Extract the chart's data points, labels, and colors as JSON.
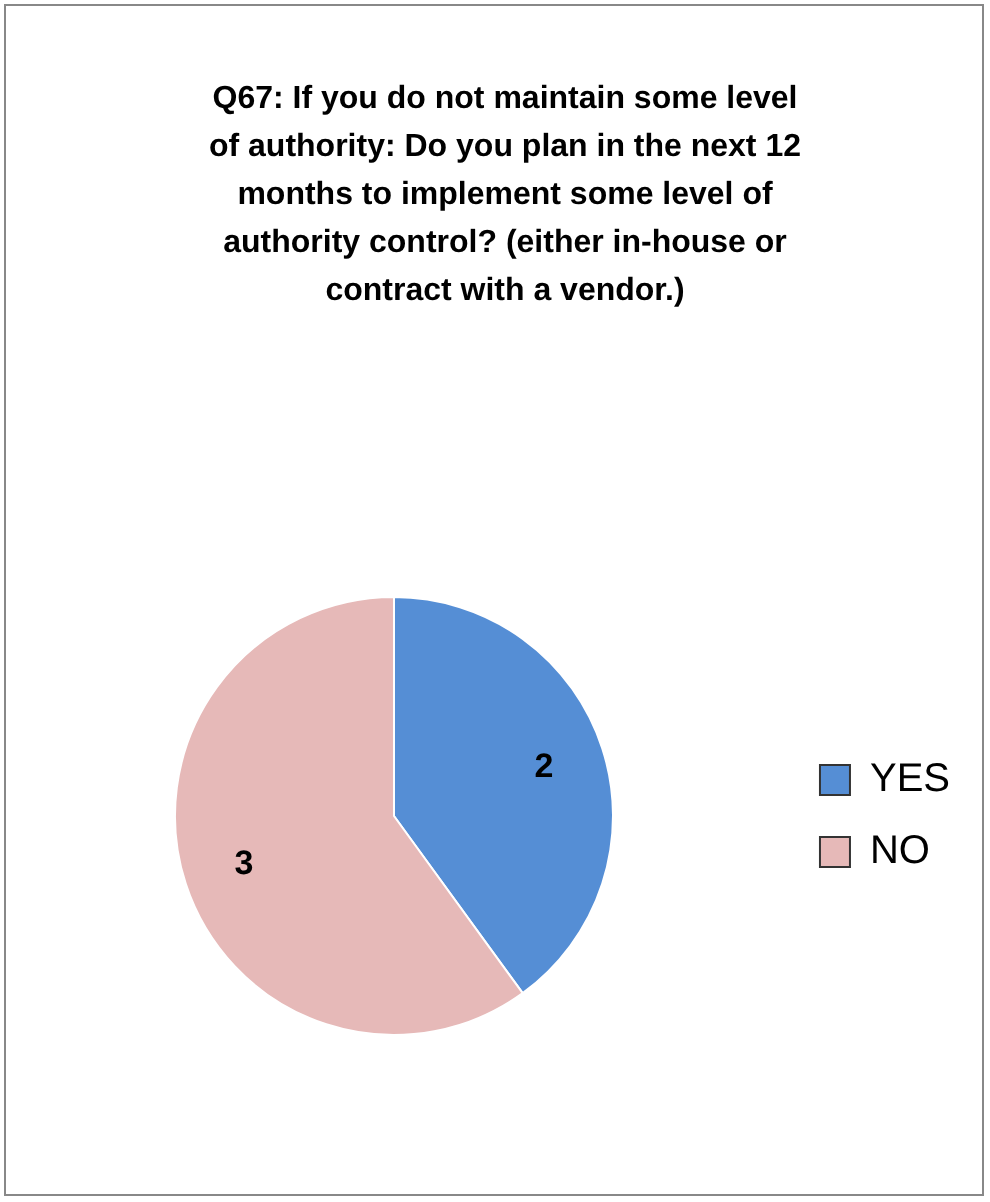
{
  "chart_data": {
    "type": "pie",
    "title": "Q67: If you do not maintain some level of authority:  Do you plan in the next 12 months to implement some level of authority control? (either in-house or contract with a vendor.)",
    "categories": [
      "YES",
      "NO"
    ],
    "values": [
      2,
      3
    ],
    "colors": [
      "#558ed5",
      "#e6b9b8"
    ],
    "data_labels": true,
    "legend": "right"
  }
}
